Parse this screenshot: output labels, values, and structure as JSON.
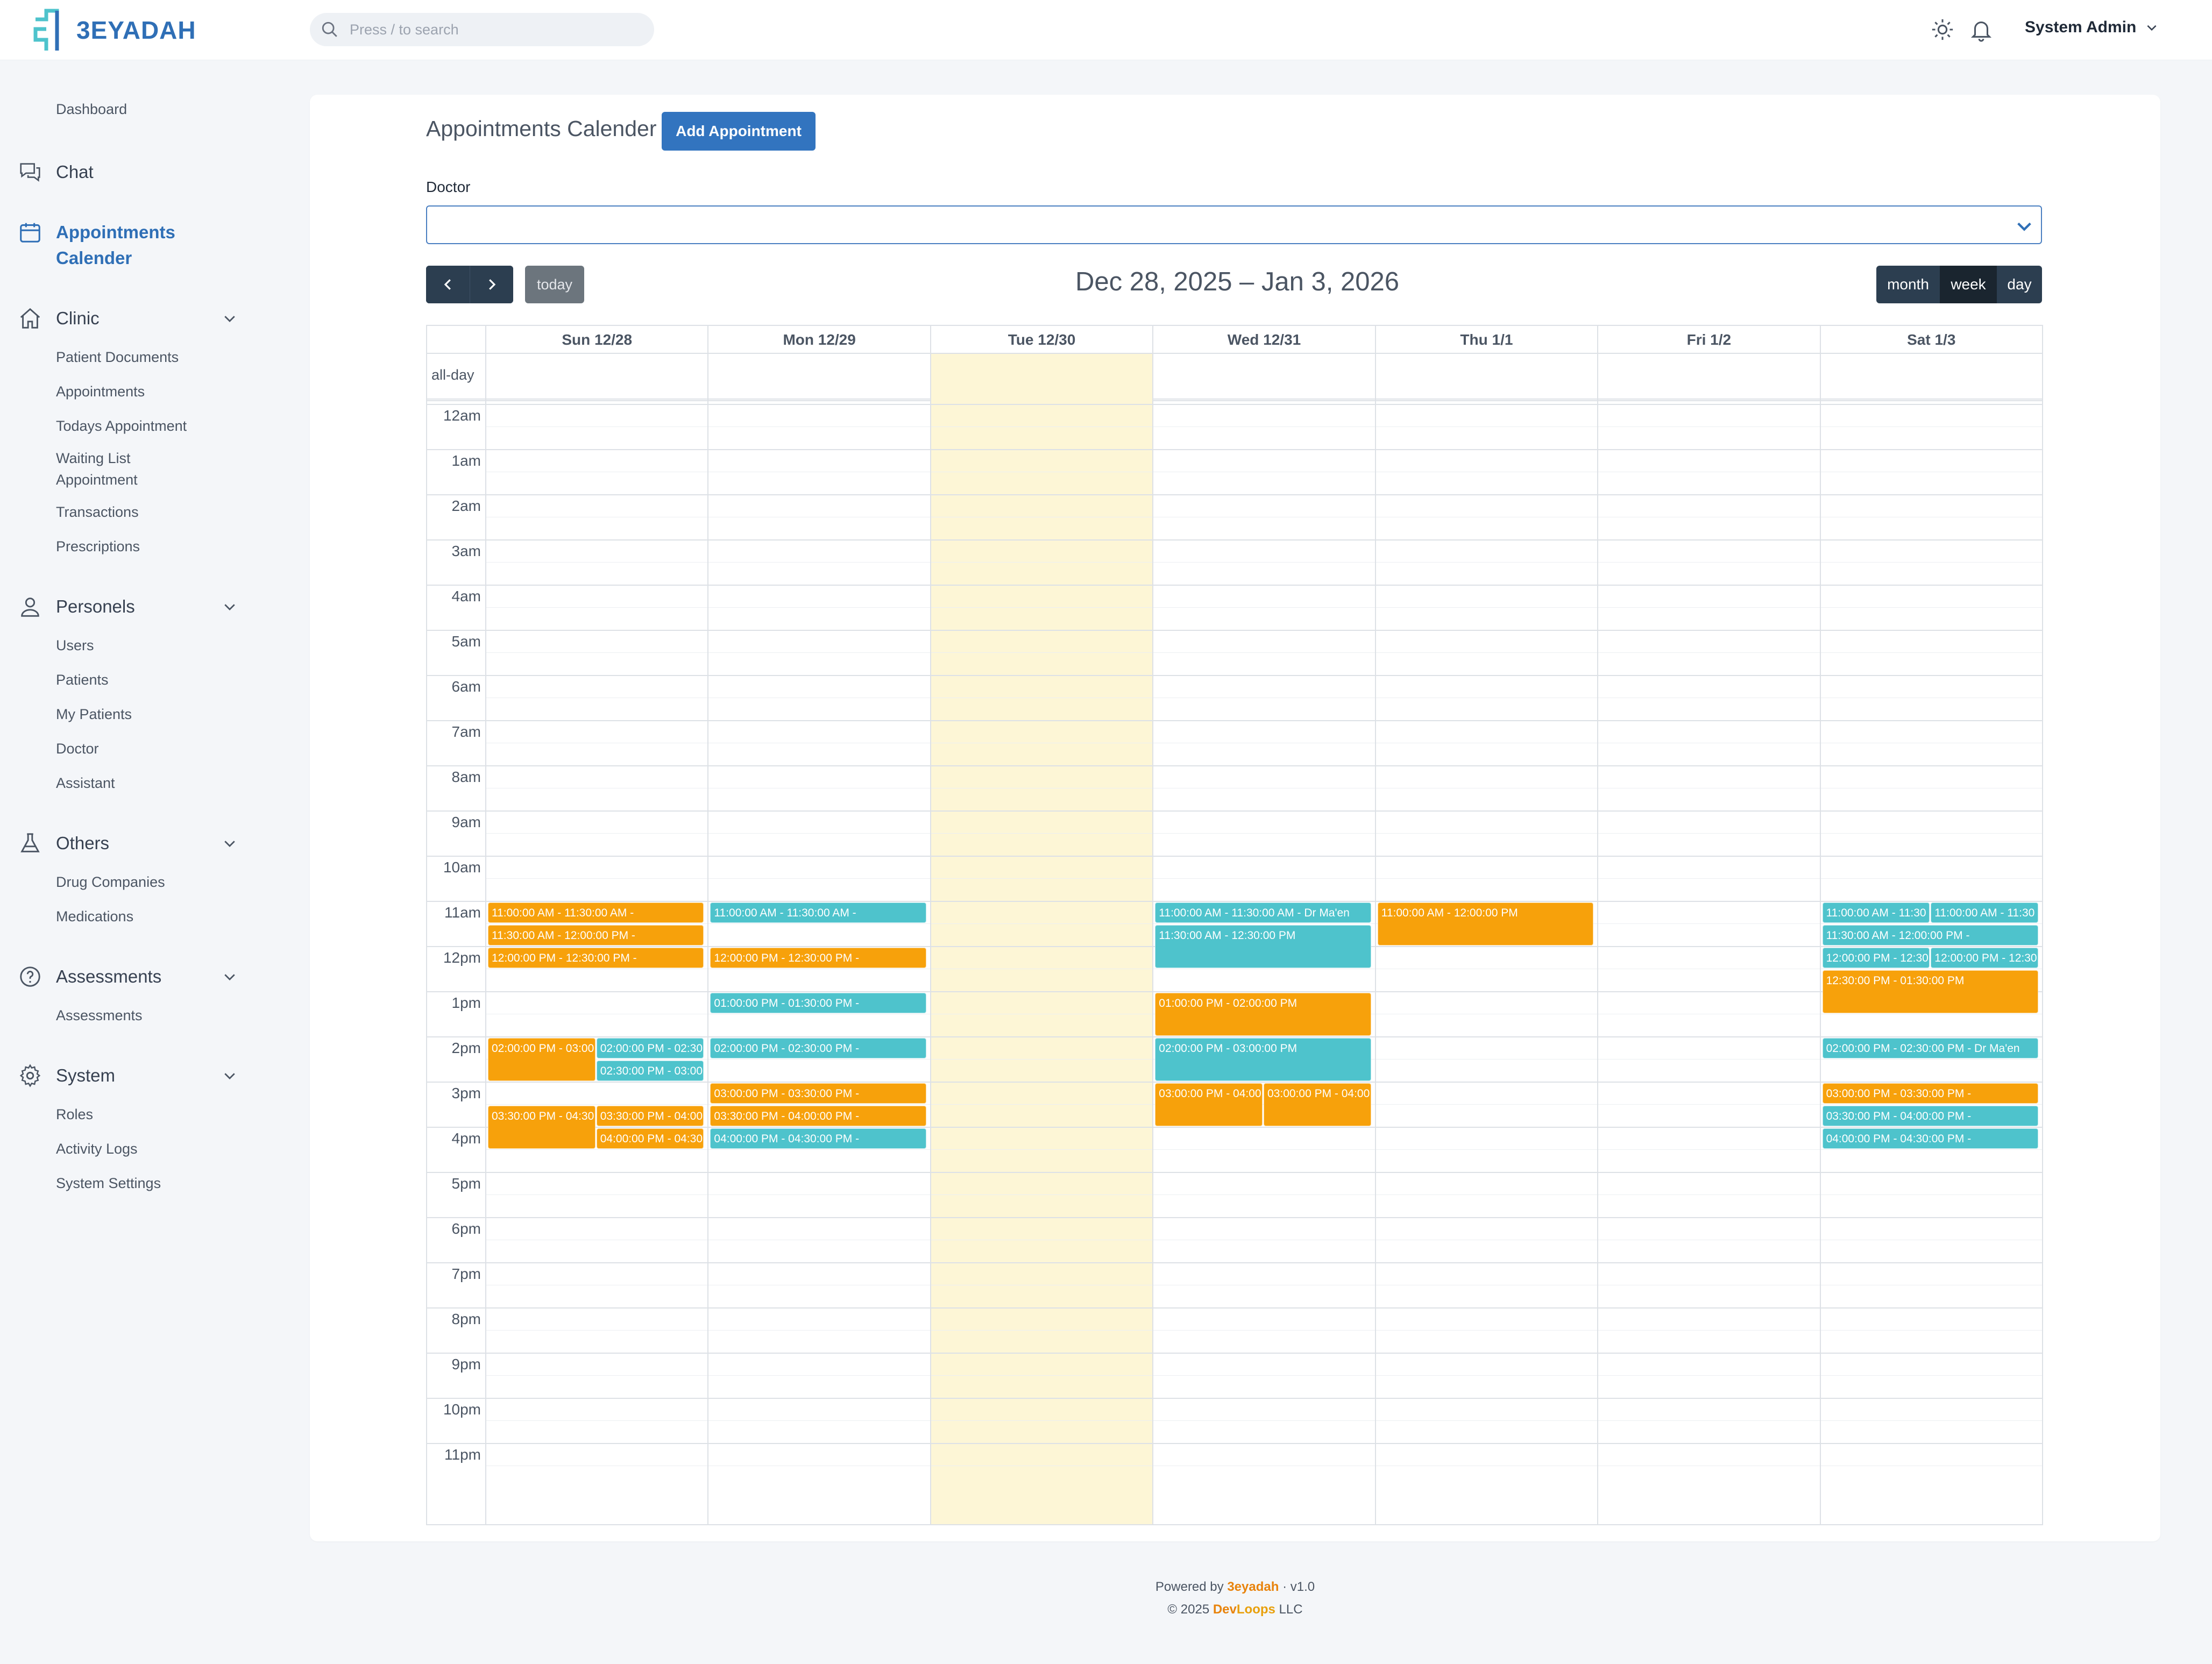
{
  "brand": {
    "logo_text": "3EYADAH"
  },
  "search": {
    "placeholder": "Press / to search"
  },
  "user": {
    "name": "System Admin"
  },
  "sidebar": {
    "dashboard": "Dashboard",
    "chat": "Chat",
    "appointments_calender": "Appointments Calender",
    "clinic": {
      "label": "Clinic",
      "items": [
        "Patient Documents",
        "Appointments",
        "Todays Appointment",
        "Waiting List Appointment",
        "Transactions",
        "Prescriptions"
      ]
    },
    "personels": {
      "label": "Personels",
      "items": [
        "Users",
        "Patients",
        "My Patients",
        "Doctor",
        "Assistant"
      ]
    },
    "others": {
      "label": "Others",
      "items": [
        "Drug Companies",
        "Medications"
      ]
    },
    "assessments": {
      "label": "Assessments",
      "items": [
        "Assessments"
      ]
    },
    "system": {
      "label": "System",
      "items": [
        "Roles",
        "Activity Logs",
        "System Settings"
      ]
    }
  },
  "page": {
    "title": "Appointments Calender",
    "add_button": "Add Appointment",
    "doctor_label": "Doctor",
    "today_button": "today",
    "range_title": "Dec 28, 2025 – Jan 3, 2026",
    "views": [
      "month",
      "week",
      "day"
    ],
    "active_view": "week"
  },
  "calendar": {
    "allday_label": "all-day",
    "days": [
      "Sun 12/28",
      "Mon 12/29",
      "Tue 12/30",
      "Wed 12/31",
      "Thu 1/1",
      "Fri 1/2",
      "Sat 1/3"
    ],
    "today_index": 2,
    "hours": [
      "12am",
      "1am",
      "2am",
      "3am",
      "4am",
      "5am",
      "6am",
      "7am",
      "8am",
      "9am",
      "10am",
      "11am",
      "12pm",
      "1pm",
      "2pm",
      "3pm",
      "4pm",
      "5pm",
      "6pm",
      "7pm",
      "8pm",
      "9pm",
      "10pm",
      "11pm"
    ],
    "events": [
      {
        "day": 0,
        "start": 11.0,
        "end": 11.5,
        "color": "orange",
        "label": "11:00:00 AM - 11:30:00 AM -",
        "col": 0,
        "cols": 1
      },
      {
        "day": 0,
        "start": 11.5,
        "end": 12.0,
        "color": "orange",
        "label": "11:30:00 AM - 12:00:00 PM -",
        "col": 0,
        "cols": 1
      },
      {
        "day": 0,
        "start": 12.0,
        "end": 12.5,
        "color": "orange",
        "label": "12:00:00 PM - 12:30:00 PM -",
        "col": 0,
        "cols": 1
      },
      {
        "day": 0,
        "start": 14.0,
        "end": 15.0,
        "color": "orange",
        "label": "02:00:00 PM - 03:00",
        "col": 0,
        "cols": 2
      },
      {
        "day": 0,
        "start": 14.0,
        "end": 14.5,
        "color": "teal",
        "label": "02:00:00 PM - 02:30",
        "col": 1,
        "cols": 2
      },
      {
        "day": 0,
        "start": 14.5,
        "end": 15.0,
        "color": "teal",
        "label": "02:30:00 PM - 03:00",
        "col": 1,
        "cols": 2
      },
      {
        "day": 0,
        "start": 15.5,
        "end": 16.5,
        "color": "orange",
        "label": "03:30:00 PM - 04:30",
        "col": 0,
        "cols": 2
      },
      {
        "day": 0,
        "start": 15.5,
        "end": 16.0,
        "color": "orange",
        "label": "03:30:00 PM - 04:00",
        "col": 1,
        "cols": 2
      },
      {
        "day": 0,
        "start": 16.0,
        "end": 16.5,
        "color": "orange",
        "label": "04:00:00 PM - 04:30",
        "col": 1,
        "cols": 2
      },
      {
        "day": 1,
        "start": 11.0,
        "end": 11.5,
        "color": "teal",
        "label": "11:00:00 AM - 11:30:00 AM -",
        "col": 0,
        "cols": 1
      },
      {
        "day": 1,
        "start": 12.0,
        "end": 12.5,
        "color": "orange",
        "label": "12:00:00 PM - 12:30:00 PM -",
        "col": 0,
        "cols": 1
      },
      {
        "day": 1,
        "start": 13.0,
        "end": 13.5,
        "color": "teal",
        "label": "01:00:00 PM - 01:30:00 PM -",
        "col": 0,
        "cols": 1
      },
      {
        "day": 1,
        "start": 14.0,
        "end": 14.5,
        "color": "teal",
        "label": "02:00:00 PM - 02:30:00 PM -",
        "col": 0,
        "cols": 1
      },
      {
        "day": 1,
        "start": 15.0,
        "end": 15.5,
        "color": "orange",
        "label": "03:00:00 PM - 03:30:00 PM -",
        "col": 0,
        "cols": 1
      },
      {
        "day": 1,
        "start": 15.5,
        "end": 16.0,
        "color": "orange",
        "label": "03:30:00 PM - 04:00:00 PM -",
        "col": 0,
        "cols": 1
      },
      {
        "day": 1,
        "start": 16.0,
        "end": 16.5,
        "color": "teal",
        "label": "04:00:00 PM - 04:30:00 PM -",
        "col": 0,
        "cols": 1
      },
      {
        "day": 3,
        "start": 11.0,
        "end": 11.5,
        "color": "teal",
        "label": "11:00:00 AM - 11:30:00 AM - Dr Ma'en",
        "col": 0,
        "cols": 1
      },
      {
        "day": 3,
        "start": 11.5,
        "end": 12.5,
        "color": "teal",
        "label": "11:30:00 AM - 12:30:00 PM",
        "col": 0,
        "cols": 1
      },
      {
        "day": 3,
        "start": 13.0,
        "end": 14.0,
        "color": "orange",
        "label": "01:00:00 PM - 02:00:00 PM",
        "col": 0,
        "cols": 1
      },
      {
        "day": 3,
        "start": 14.0,
        "end": 15.0,
        "color": "teal",
        "label": "02:00:00 PM - 03:00:00 PM",
        "col": 0,
        "cols": 1
      },
      {
        "day": 3,
        "start": 15.0,
        "end": 16.0,
        "color": "orange",
        "label": "03:00:00 PM - 04:00",
        "col": 0,
        "cols": 2
      },
      {
        "day": 3,
        "start": 15.0,
        "end": 16.0,
        "color": "orange",
        "label": "03:00:00 PM - 04:00",
        "col": 1,
        "cols": 2
      },
      {
        "day": 4,
        "start": 11.0,
        "end": 12.0,
        "color": "orange",
        "label": "11:00:00 AM - 12:00:00 PM",
        "col": 0,
        "cols": 1
      },
      {
        "day": 6,
        "start": 11.0,
        "end": 11.5,
        "color": "teal",
        "label": "11:00:00 AM - 11:30",
        "col": 0,
        "cols": 2
      },
      {
        "day": 6,
        "start": 11.0,
        "end": 11.5,
        "color": "teal",
        "label": "11:00:00 AM - 11:30",
        "col": 1,
        "cols": 2
      },
      {
        "day": 6,
        "start": 11.5,
        "end": 12.0,
        "color": "teal",
        "label": "11:30:00 AM - 12:00:00 PM -",
        "col": 0,
        "cols": 1
      },
      {
        "day": 6,
        "start": 12.0,
        "end": 12.5,
        "color": "teal",
        "label": "12:00:00 PM - 12:30",
        "col": 0,
        "cols": 2
      },
      {
        "day": 6,
        "start": 12.0,
        "end": 12.5,
        "color": "teal",
        "label": "12:00:00 PM - 12:30",
        "col": 1,
        "cols": 2
      },
      {
        "day": 6,
        "start": 12.5,
        "end": 13.5,
        "color": "orange",
        "label": "12:30:00 PM - 01:30:00 PM",
        "col": 0,
        "cols": 1
      },
      {
        "day": 6,
        "start": 14.0,
        "end": 14.5,
        "color": "teal",
        "label": "02:00:00 PM - 02:30:00 PM - Dr Ma'en",
        "col": 0,
        "cols": 1
      },
      {
        "day": 6,
        "start": 15.0,
        "end": 15.5,
        "color": "orange",
        "label": "03:00:00 PM - 03:30:00 PM -",
        "col": 0,
        "cols": 1
      },
      {
        "day": 6,
        "start": 15.5,
        "end": 16.0,
        "color": "teal",
        "label": "03:30:00 PM - 04:00:00 PM -",
        "col": 0,
        "cols": 1
      },
      {
        "day": 6,
        "start": 16.0,
        "end": 16.5,
        "color": "teal",
        "label": "04:00:00 PM - 04:30:00 PM -",
        "col": 0,
        "cols": 1
      }
    ]
  },
  "footer": {
    "powered_prefix": "Powered by",
    "powered_brand": "3eyadah",
    "version": "· v1.0",
    "copyright_prefix": "© 2025",
    "company_a": "Dev",
    "company_b": "Loops",
    "company_suffix": "LLC"
  },
  "colors": {
    "accent": "#3274bf",
    "event_orange": "#f7a10b",
    "event_teal": "#4ec3cc",
    "today_bg": "#fdf6d6"
  }
}
